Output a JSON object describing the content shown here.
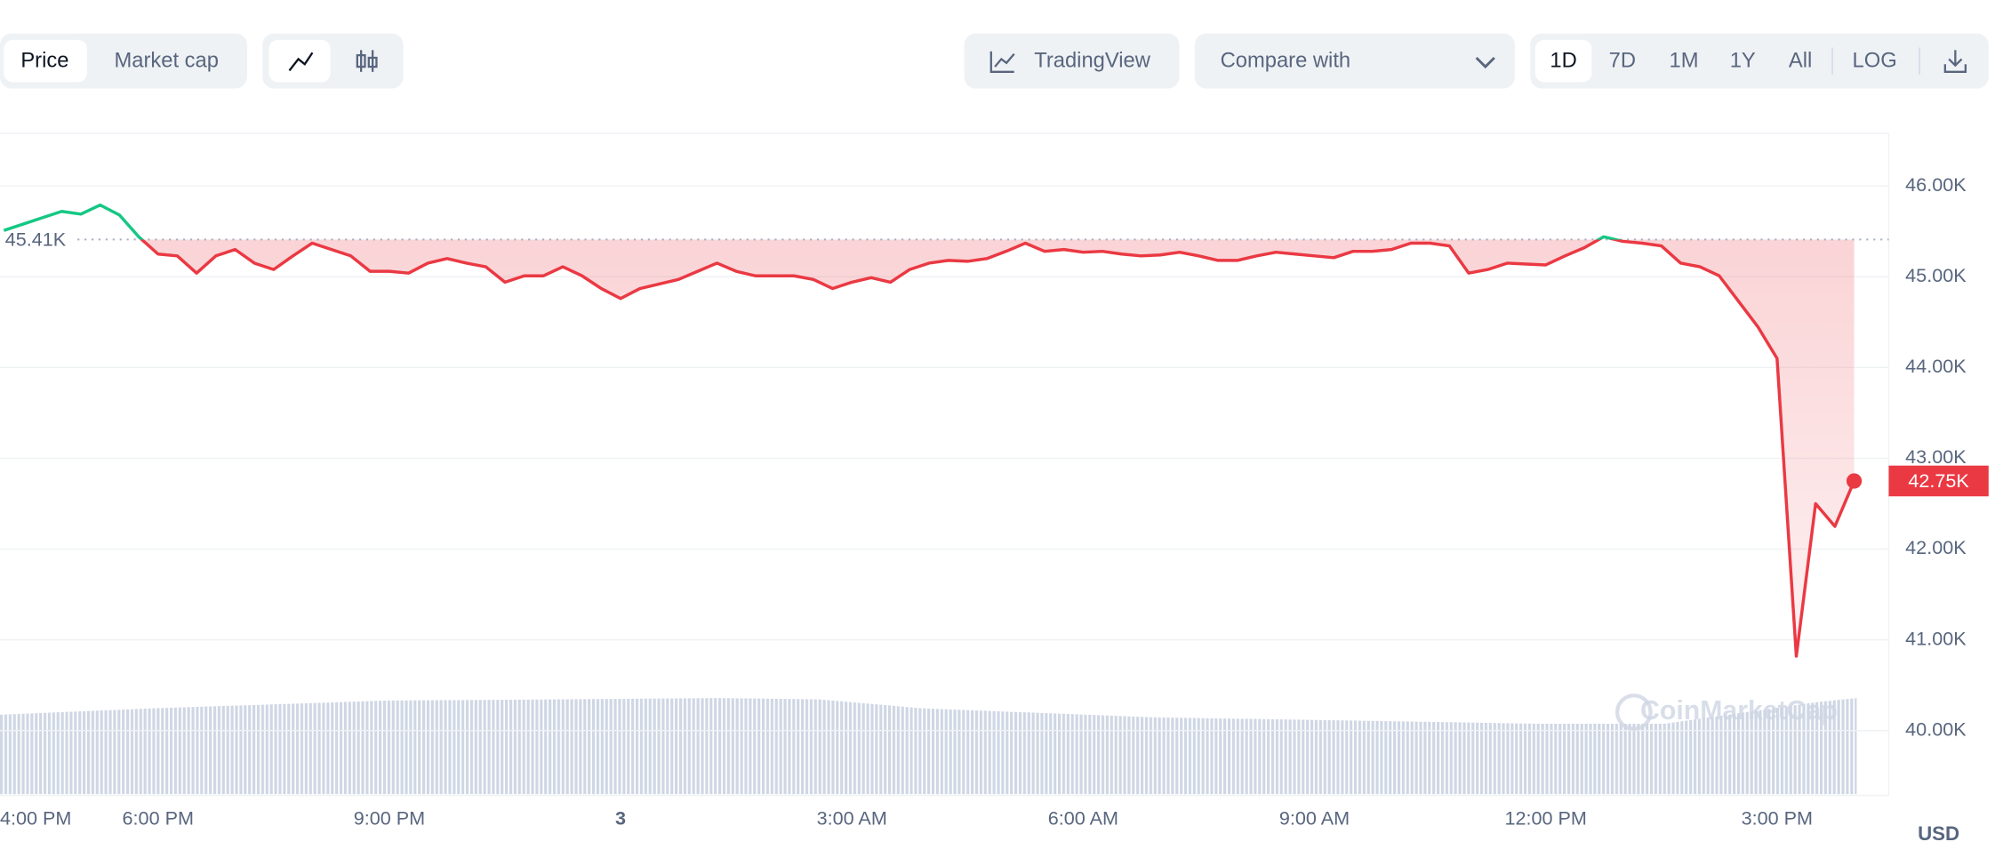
{
  "toolbar": {
    "data_tabs": [
      "Price",
      "Market cap"
    ],
    "tradingview": "TradingView",
    "compare": "Compare with",
    "ranges": [
      "1D",
      "7D",
      "1M",
      "1Y",
      "All"
    ],
    "log": "LOG"
  },
  "watermark": "CoinMarketCap",
  "chart_data": {
    "type": "line",
    "categories": [
      "4:00 PM",
      null,
      null,
      null,
      null,
      null,
      null,
      null,
      "6:00 PM",
      null,
      null,
      null,
      null,
      null,
      null,
      null,
      null,
      null,
      null,
      null,
      "9:00 PM",
      null,
      null,
      null,
      null,
      null,
      null,
      null,
      null,
      null,
      null,
      null,
      "3",
      null,
      null,
      null,
      null,
      null,
      null,
      null,
      null,
      null,
      null,
      null,
      "3:00 AM",
      null,
      null,
      null,
      null,
      null,
      null,
      null,
      null,
      null,
      null,
      null,
      "6:00 AM",
      null,
      null,
      null,
      null,
      null,
      null,
      null,
      null,
      null,
      null,
      null,
      "9:00 AM",
      null,
      null,
      null,
      null,
      null,
      null,
      null,
      null,
      null,
      null,
      null,
      "12:00 PM",
      null,
      null,
      null,
      null,
      null,
      null,
      null,
      null,
      null,
      null,
      null,
      "3:00 PM",
      null,
      null,
      null,
      null
    ],
    "values": [
      45510,
      45580,
      45650,
      45720,
      45690,
      45790,
      45680,
      45440,
      45250,
      45230,
      45040,
      45230,
      45300,
      45150,
      45080,
      45230,
      45370,
      45300,
      45230,
      45060,
      45060,
      45040,
      45150,
      45200,
      45150,
      45110,
      44940,
      45010,
      45010,
      45110,
      45010,
      44870,
      44760,
      44870,
      44920,
      44970,
      45060,
      45150,
      45060,
      45010,
      45010,
      45010,
      44970,
      44870,
      44940,
      44990,
      44940,
      45080,
      45150,
      45180,
      45170,
      45200,
      45280,
      45370,
      45280,
      45300,
      45270,
      45280,
      45250,
      45230,
      45240,
      45270,
      45230,
      45180,
      45180,
      45230,
      45270,
      45250,
      45230,
      45210,
      45280,
      45280,
      45300,
      45370,
      45370,
      45340,
      45040,
      45080,
      45150,
      45140,
      45130,
      45230,
      45320,
      45440,
      45390,
      45370,
      45340,
      45150,
      45110,
      45010,
      44730,
      44450,
      44100,
      40820,
      42500,
      42250,
      42750
    ],
    "color": "#ea3943",
    "up_color": "#16c784",
    "baseline": {
      "value": 45410,
      "label": "45.41K"
    },
    "last": {
      "value": 42750,
      "label": "42.75K"
    },
    "ylim": [
      39300,
      46580
    ],
    "yticks": [
      {
        "value": 40000,
        "label": "40.00K"
      },
      {
        "value": 41000,
        "label": "41.00K"
      },
      {
        "value": 42000,
        "label": "42.00K"
      },
      {
        "value": 43000,
        "label": "43.00K"
      },
      {
        "value": 44000,
        "label": "44.00K"
      },
      {
        "value": 45000,
        "label": "45.00K"
      },
      {
        "value": 46000,
        "label": "46.00K"
      }
    ],
    "y_unit": "USD",
    "grid": true
  }
}
